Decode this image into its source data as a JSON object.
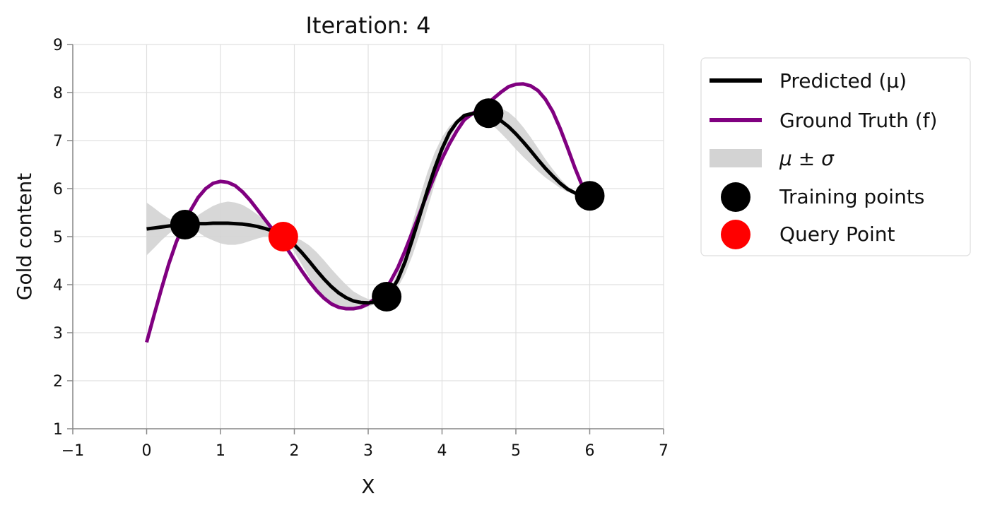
{
  "chart_data": {
    "type": "line",
    "title": "Iteration: 4",
    "xlabel": "X",
    "ylabel": "Gold content",
    "xlim": [
      -1,
      7
    ],
    "ylim": [
      1,
      9
    ],
    "x_ticks": [
      "−1",
      "0",
      "1",
      "2",
      "3",
      "4",
      "5",
      "6",
      "7"
    ],
    "y_ticks": [
      "1",
      "2",
      "3",
      "4",
      "5",
      "6",
      "7",
      "8",
      "9"
    ],
    "grid": true,
    "legend_position": "outside right, top",
    "legend": {
      "predicted": "Predicted (μ)",
      "ground_truth": "Ground Truth (f)",
      "band": "μ ± σ",
      "training": "Training points",
      "query": "Query Point"
    },
    "colors": {
      "predicted": "#000000",
      "ground_truth": "#800080",
      "band": "#d3d3d3",
      "training": "#000000",
      "query": "#ff0000",
      "grid": "#e0e0e0",
      "axis": "#888888"
    },
    "series": [
      {
        "name": "Ground Truth (f)",
        "x": [
          0.0,
          0.1,
          0.2,
          0.3,
          0.4,
          0.5,
          0.6,
          0.7,
          0.8,
          0.9,
          1.0,
          1.1,
          1.2,
          1.3,
          1.4,
          1.5,
          1.6,
          1.7,
          1.8,
          1.9,
          2.0,
          2.1,
          2.2,
          2.3,
          2.4,
          2.5,
          2.6,
          2.7,
          2.8,
          2.9,
          3.0,
          3.1,
          3.2,
          3.3,
          3.4,
          3.5,
          3.6,
          3.7,
          3.8,
          3.9,
          4.0,
          4.1,
          4.2,
          4.3,
          4.4,
          4.5,
          4.6,
          4.7,
          4.8,
          4.9,
          5.0,
          5.1,
          5.2,
          5.3,
          5.4,
          5.5,
          5.6,
          5.7,
          5.8,
          5.9,
          6.0
        ],
        "y": [
          2.8,
          3.36,
          3.91,
          4.43,
          4.88,
          5.25,
          5.56,
          5.82,
          6.0,
          6.11,
          6.15,
          6.13,
          6.06,
          5.93,
          5.76,
          5.56,
          5.36,
          5.16,
          4.97,
          4.75,
          4.52,
          4.29,
          4.07,
          3.88,
          3.72,
          3.6,
          3.53,
          3.5,
          3.5,
          3.53,
          3.6,
          3.72,
          3.85,
          4.06,
          4.35,
          4.71,
          5.1,
          5.5,
          5.89,
          6.27,
          6.62,
          6.93,
          7.2,
          7.43,
          7.55,
          7.65,
          7.75,
          7.88,
          8.01,
          8.12,
          8.17,
          8.18,
          8.14,
          8.04,
          7.86,
          7.6,
          7.25,
          6.85,
          6.43,
          6.05,
          5.82
        ]
      },
      {
        "name": "Predicted (μ)",
        "x": [
          0.0,
          0.1,
          0.2,
          0.3,
          0.4,
          0.5,
          0.6,
          0.7,
          0.8,
          0.9,
          1.0,
          1.1,
          1.2,
          1.3,
          1.4,
          1.5,
          1.6,
          1.7,
          1.8,
          1.9,
          2.0,
          2.1,
          2.2,
          2.3,
          2.4,
          2.5,
          2.6,
          2.7,
          2.8,
          2.9,
          3.0,
          3.1,
          3.2,
          3.3,
          3.4,
          3.5,
          3.6,
          3.7,
          3.8,
          3.9,
          4.0,
          4.1,
          4.2,
          4.3,
          4.4,
          4.5,
          4.6,
          4.7,
          4.8,
          4.9,
          5.0,
          5.1,
          5.2,
          5.3,
          5.4,
          5.5,
          5.6,
          5.7,
          5.8,
          5.9,
          6.0
        ],
        "y": [
          5.16,
          5.18,
          5.2,
          5.22,
          5.24,
          5.25,
          5.26,
          5.27,
          5.27,
          5.28,
          5.28,
          5.28,
          5.27,
          5.26,
          5.24,
          5.21,
          5.17,
          5.12,
          5.06,
          4.96,
          4.83,
          4.67,
          4.49,
          4.3,
          4.12,
          3.96,
          3.83,
          3.73,
          3.66,
          3.63,
          3.62,
          3.64,
          3.7,
          3.84,
          4.1,
          4.48,
          4.95,
          5.45,
          5.95,
          6.42,
          6.83,
          7.16,
          7.38,
          7.52,
          7.56,
          7.56,
          7.55,
          7.5,
          7.41,
          7.29,
          7.14,
          6.97,
          6.79,
          6.6,
          6.42,
          6.26,
          6.11,
          5.99,
          5.91,
          5.86,
          5.85
        ]
      },
      {
        "name": "μ ± σ",
        "x": [
          0.0,
          0.1,
          0.2,
          0.3,
          0.4,
          0.5,
          0.6,
          0.7,
          0.8,
          0.9,
          1.0,
          1.1,
          1.2,
          1.3,
          1.4,
          1.5,
          1.6,
          1.7,
          1.8,
          1.9,
          2.0,
          2.1,
          2.2,
          2.3,
          2.4,
          2.5,
          2.6,
          2.7,
          2.8,
          2.9,
          3.0,
          3.1,
          3.2,
          3.3,
          3.4,
          3.5,
          3.6,
          3.7,
          3.8,
          3.9,
          4.0,
          4.1,
          4.2,
          4.3,
          4.4,
          4.5,
          4.6,
          4.7,
          4.8,
          4.9,
          5.0,
          5.1,
          5.2,
          5.3,
          5.4,
          5.5,
          5.6,
          5.7,
          5.8,
          5.9,
          6.0
        ],
        "sigma": [
          0.55,
          0.42,
          0.28,
          0.16,
          0.07,
          0.0,
          0.08,
          0.18,
          0.28,
          0.36,
          0.42,
          0.45,
          0.44,
          0.4,
          0.33,
          0.25,
          0.17,
          0.1,
          0.04,
          0.06,
          0.15,
          0.25,
          0.33,
          0.38,
          0.39,
          0.37,
          0.33,
          0.27,
          0.2,
          0.14,
          0.08,
          0.04,
          0.02,
          0.06,
          0.16,
          0.26,
          0.34,
          0.38,
          0.38,
          0.33,
          0.24,
          0.14,
          0.06,
          0.02,
          0.0,
          0.05,
          0.12,
          0.2,
          0.26,
          0.3,
          0.32,
          0.31,
          0.28,
          0.24,
          0.19,
          0.14,
          0.1,
          0.06,
          0.03,
          0.01,
          0.0
        ]
      }
    ],
    "training_points": {
      "name": "Training points",
      "x": [
        0.52,
        3.25,
        4.63,
        6.0
      ],
      "y": [
        5.25,
        3.75,
        7.57,
        5.85
      ]
    },
    "query_point": {
      "name": "Query Point",
      "x": [
        1.85
      ],
      "y": [
        5.0
      ]
    }
  }
}
